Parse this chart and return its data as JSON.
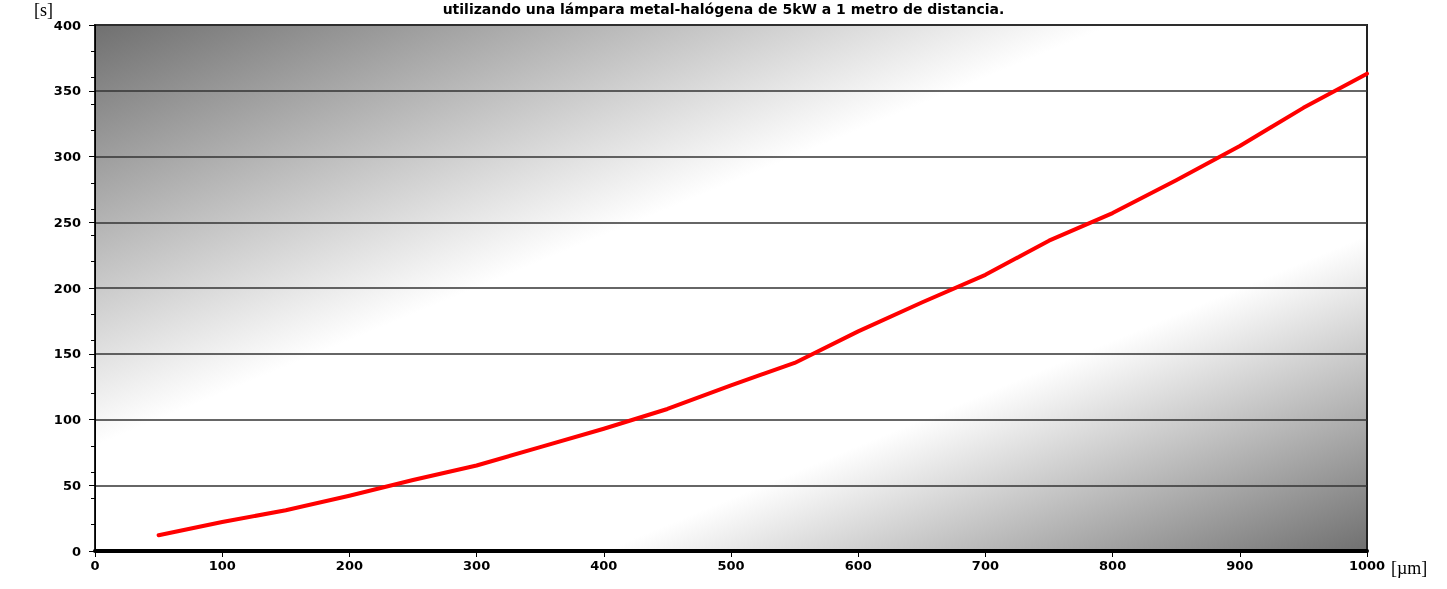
{
  "chart_data": {
    "type": "line",
    "title": "utilizando una lámpara metal-halógena de 5kW a 1 metro de distancia.",
    "xlabel": "[µm]",
    "ylabel": "[s]",
    "x": [
      50,
      100,
      150,
      200,
      250,
      300,
      350,
      400,
      450,
      500,
      550,
      600,
      650,
      700,
      750,
      800,
      850,
      900,
      950,
      1000
    ],
    "series": [
      {
        "color": "#ff0000",
        "values": [
          12,
          22,
          31,
          42,
          54,
          65,
          79,
          93,
          108,
          126,
          143,
          167,
          189,
          210,
          236,
          257,
          282,
          308,
          337,
          363
        ]
      }
    ],
    "xlim": [
      0,
      1000
    ],
    "xticks": [
      0,
      100,
      200,
      300,
      400,
      500,
      600,
      700,
      800,
      900,
      1000
    ],
    "ylim": [
      0,
      400
    ],
    "yticks": [
      0,
      50,
      100,
      150,
      200,
      250,
      300,
      350,
      400
    ],
    "grid": "y",
    "marker": "none",
    "line_style": "solid"
  }
}
